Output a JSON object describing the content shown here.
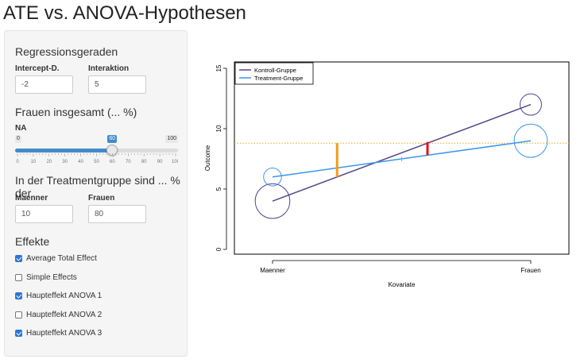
{
  "app": {
    "title": "ATE vs. ANOVA-Hypothesen"
  },
  "sidebar": {
    "regression_title": "Regressionsgeraden",
    "intercept_label": "Intercept-D.",
    "intercept_value": "-2",
    "interaction_label": "Interaktion",
    "interaction_value": "5",
    "women_title": "Frauen insgesamt (... %)",
    "slider_label": "NA",
    "slider": {
      "min": 0,
      "max": 100,
      "value": 60,
      "min_label": "0",
      "max_label": "100",
      "value_label": "60",
      "tick_labels": [
        "0",
        "10",
        "20",
        "30",
        "40",
        "50",
        "60",
        "70",
        "80",
        "90",
        "100"
      ]
    },
    "treatment_title": "In der Treatmentgruppe sind ... % der",
    "men_label": "Maenner",
    "men_value": "10",
    "women_label": "Frauen",
    "women_value": "80",
    "effects_title": "Effekte",
    "checkboxes": [
      {
        "label": "Average Total Effect",
        "checked": true
      },
      {
        "label": "Simple Effects",
        "checked": false
      },
      {
        "label": "Haupteffekt ANOVA 1",
        "checked": true
      },
      {
        "label": "Haupteffekt ANOVA 2",
        "checked": false
      },
      {
        "label": "Haupteffekt ANOVA 3",
        "checked": true
      }
    ]
  },
  "chart_data": {
    "type": "line",
    "categories": [
      "Maenner",
      "Frauen"
    ],
    "xlabel": "Kovariate",
    "ylabel": "Outcome",
    "ylim": [
      0,
      15
    ],
    "yticks": [
      "0",
      "5",
      "10",
      "15"
    ],
    "legend_position": "top-left",
    "series": [
      {
        "name": "Kontroll-Gruppe",
        "color": "#55468f",
        "values": [
          4,
          12
        ],
        "group_size_share": [
          0.9,
          0.2
        ]
      },
      {
        "name": "Treatment-Gruppe",
        "color": "#3a96ec",
        "values": [
          6,
          9
        ],
        "group_size_share": [
          0.1,
          0.8
        ]
      }
    ],
    "reference_line": {
      "y": 8.8,
      "color": "#f5a623",
      "style": "dotted"
    },
    "effect_segments": [
      {
        "x_fraction": 0.25,
        "y_from": 6.0,
        "y_to": 8.8,
        "color": "#f59a1a"
      },
      {
        "x_fraction": 0.6,
        "y_from": 7.8,
        "y_to": 8.9,
        "color": "#e8101a"
      },
      {
        "x_fraction": 0.5,
        "y_from": 7.3,
        "y_to": 7.7,
        "color": "#9aa6b8"
      }
    ]
  }
}
